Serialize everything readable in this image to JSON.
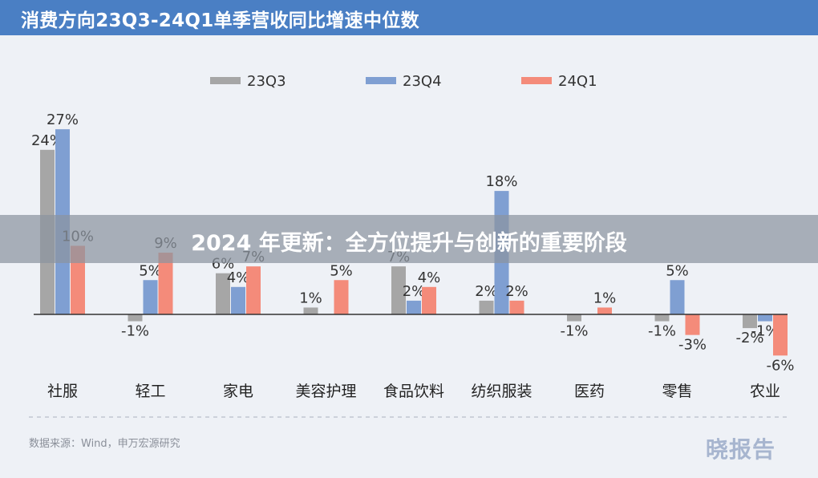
{
  "header": {
    "title": "消费方向23Q3-24Q1单季营收同比增速中位数"
  },
  "colors": {
    "title_bar": "#4a7fc4",
    "23Q3": "#a6a6a6",
    "23Q4": "#7f9fd2",
    "24Q1": "#f48b7a"
  },
  "chart_data": {
    "type": "bar",
    "categories": [
      "社服",
      "轻工",
      "家电",
      "美容护理",
      "食品饮料",
      "纺织服装",
      "医药",
      "零售",
      "农业"
    ],
    "series": [
      {
        "name": "23Q3",
        "values": [
          24,
          -1,
          6,
          1,
          7,
          2,
          -1,
          -1,
          -2
        ],
        "labels": [
          "24%",
          "-1%",
          "6%",
          "1%",
          "7%",
          "2%",
          "-1%",
          "-1%",
          "-2%"
        ]
      },
      {
        "name": "23Q4",
        "values": [
          27,
          5,
          4,
          0,
          2,
          18,
          0,
          5,
          -1
        ],
        "labels": [
          "27%",
          "5%",
          "4%",
          "",
          "2%",
          "18%",
          "",
          "5%",
          "-1%"
        ]
      },
      {
        "name": "24Q1",
        "values": [
          10,
          9,
          7,
          5,
          4,
          2,
          1,
          -3,
          -6
        ],
        "labels": [
          "10%",
          "9%",
          "7%",
          "5%",
          "4%",
          "2%",
          "1%",
          "-3%",
          "-6%"
        ]
      }
    ],
    "ylim": [
      -8,
      30
    ],
    "legend_position": "top-center",
    "grid": false
  },
  "footer": {
    "source": "数据来源：Wind，申万宏源研究",
    "logo": "晓报告"
  },
  "banner": {
    "text": "2024 年更新：全方位提升与创新的重要阶段"
  }
}
